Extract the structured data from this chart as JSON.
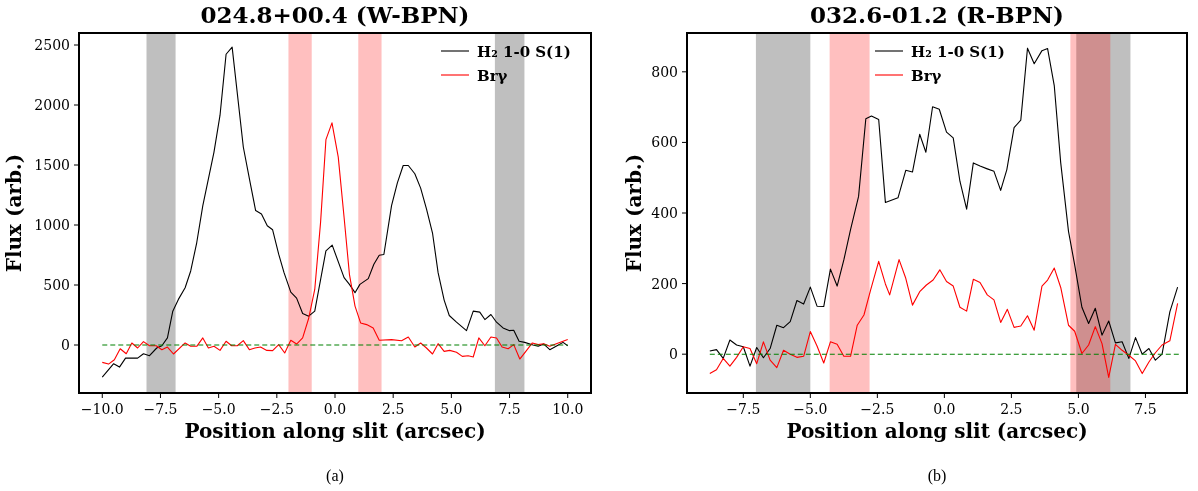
{
  "chart_data": [
    {
      "type": "line",
      "title": "024.8+00.4 (W-BPN)",
      "xlabel": "Position along slit (arcsec)",
      "ylabel": "Flux (arb.)",
      "annotations": [
        "(a)"
      ],
      "legend": "top right",
      "xlim": [
        -11,
        11
      ],
      "ylim": [
        -400,
        2600
      ],
      "xticks": [
        {
          "value": -10,
          "label": "−10.0"
        },
        {
          "value": -7.5,
          "label": "−7.5"
        },
        {
          "value": -5,
          "label": "−5.0"
        },
        {
          "value": -2.5,
          "label": "−2.5"
        },
        {
          "value": 0,
          "label": "0.0"
        },
        {
          "value": 2.5,
          "label": "2.5"
        },
        {
          "value": 5,
          "label": "5.0"
        },
        {
          "value": 7.5,
          "label": "7.5"
        },
        {
          "value": 10,
          "label": "10.0"
        }
      ],
      "yticks": [
        0,
        500,
        1000,
        1500,
        2000,
        2500
      ],
      "bands": [
        {
          "axis": "x",
          "from": -8.1,
          "to": -6.85,
          "color": "#000000"
        },
        {
          "axis": "x",
          "from": -2.0,
          "to": -1.0,
          "color": "#ff0000"
        },
        {
          "axis": "x",
          "from": 1.0,
          "to": 2.0,
          "color": "#ff0000"
        },
        {
          "axis": "x",
          "from": 6.87,
          "to": 8.14,
          "color": "#000000"
        }
      ],
      "series": [
        {
          "name": "H₂ 1-0 S(1)",
          "color": "#000000",
          "x": [
            -10,
            -9.51,
            -9.26,
            -9.0,
            -8.48,
            -8.23,
            -7.97,
            -7.66,
            -7.44,
            -7.2,
            -6.97,
            -6.73,
            -6.44,
            -6.2,
            -5.94,
            -5.68,
            -5.2,
            -4.94,
            -4.68,
            -4.42,
            -3.94,
            -3.65,
            -3.41,
            -3.16,
            -2.91,
            -2.68,
            -2.42,
            -2.19,
            -1.9,
            -1.65,
            -1.39,
            -1.13,
            -0.87,
            -0.39,
            -0.12,
            0.39,
            0.62,
            0.86,
            1.07,
            1.43,
            1.67,
            1.9,
            2.1,
            2.43,
            2.68,
            2.93,
            3.15,
            3.43,
            3.68,
            3.93,
            4.19,
            4.43,
            4.69,
            4.91,
            5.22,
            5.65,
            5.94,
            6.22,
            6.44,
            6.7,
            6.94,
            7.22,
            7.48,
            7.68,
            7.91,
            8.15,
            8.51,
            8.73,
            8.97,
            9.23,
            9.54,
            9.8,
            10
          ],
          "values": [
            -268,
            -156,
            -184,
            -109,
            -109,
            -73,
            -89,
            -25,
            -6,
            59,
            282,
            380,
            477,
            617,
            854,
            1161,
            1608,
            1915,
            2423,
            2482,
            1650,
            1357,
            1120,
            1092,
            994,
            960,
            757,
            603,
            441,
            391,
            262,
            240,
            282,
            785,
            832,
            561,
            505,
            436,
            505,
            553,
            673,
            748,
            754,
            1161,
            1351,
            1496,
            1496,
            1427,
            1307,
            1134,
            933,
            603,
            374,
            246,
            190,
            120,
            282,
            274,
            212,
            254,
            190,
            142,
            120,
            123,
            31,
            22,
            0,
            -11,
            8,
            -39,
            -6,
            22,
            -6
          ]
        },
        {
          "name": "Brγ",
          "color": "#ff0000",
          "x": [
            -10,
            -9.73,
            -9.48,
            -9.23,
            -8.97,
            -8.73,
            -8.48,
            -8.23,
            -7.97,
            -7.68,
            -7.44,
            -7.2,
            -6.94,
            -6.44,
            -6.2,
            -5.94,
            -5.68,
            -5.44,
            -5.2,
            -4.94,
            -4.68,
            -4.44,
            -4.2,
            -3.94,
            -3.68,
            -3.44,
            -3.2,
            -2.93,
            -2.68,
            -2.42,
            -2.16,
            -1.9,
            -1.65,
            -1.39,
            -1.13,
            -0.87,
            -0.62,
            -0.39,
            -0.13,
            0.14,
            0.39,
            0.62,
            0.86,
            1.1,
            1.36,
            1.64,
            1.9,
            2.43,
            2.86,
            3.15,
            3.43,
            3.68,
            3.93,
            4.19,
            4.43,
            4.69,
            4.93,
            5.22,
            5.47,
            5.72,
            5.94,
            6.18,
            6.44,
            6.7,
            6.94,
            7.18,
            7.44,
            7.68,
            7.94,
            8.2,
            8.48,
            8.73,
            8.97,
            9.23,
            9.51,
            10
          ],
          "values": [
            -145,
            -159,
            -123,
            -31,
            -73,
            17,
            -25,
            28,
            -6,
            -6,
            -39,
            -17,
            -75,
            17,
            -11,
            -11,
            59,
            -25,
            -11,
            -45,
            31,
            -6,
            -6,
            36,
            -39,
            -25,
            -17,
            -45,
            -47,
            3,
            -67,
            39,
            8,
            59,
            223,
            463,
            1022,
            1711,
            1851,
            1566,
            1064,
            589,
            324,
            184,
            170,
            142,
            39,
            45,
            36,
            67,
            -17,
            17,
            -25,
            -75,
            11,
            -53,
            -45,
            -61,
            -95,
            -89,
            -100,
            59,
            -6,
            67,
            59,
            -17,
            -31,
            3,
            -117,
            -53,
            17,
            3,
            11,
            -11,
            11,
            45
          ]
        },
        {
          "color": "#008000",
          "line_style": "dashed",
          "x": [
            -10,
            10
          ],
          "values": [
            0,
            0
          ]
        }
      ]
    },
    {
      "type": "line",
      "title": "032.6-01.2 (R-BPN)",
      "xlabel": "Position along slit (arcsec)",
      "ylabel": "Flux (arb.)",
      "annotations": [
        "(b)"
      ],
      "legend": "top right",
      "xlim": [
        -9.6,
        9.05
      ],
      "ylim": [
        -110,
        910
      ],
      "xticks": [
        {
          "value": -7.5,
          "label": "−7.5"
        },
        {
          "value": -5,
          "label": "−5.0"
        },
        {
          "value": -2.5,
          "label": "−2.5"
        },
        {
          "value": 0,
          "label": "0.0"
        },
        {
          "value": 2.5,
          "label": "2.5"
        },
        {
          "value": 5,
          "label": "5.0"
        },
        {
          "value": 7.5,
          "label": "7.5"
        }
      ],
      "yticks": [
        0,
        200,
        400,
        600,
        800
      ],
      "bands": [
        {
          "axis": "x",
          "from": -7.03,
          "to": -5.0,
          "color": "#000000"
        },
        {
          "axis": "x",
          "from": 4.92,
          "to": 6.94,
          "color": "#000000"
        },
        {
          "axis": "x",
          "from": -4.28,
          "to": -2.79,
          "color": "#ff0000"
        },
        {
          "axis": "x",
          "from": 4.7,
          "to": 6.19,
          "color": "#ff0000"
        }
      ],
      "series": [
        {
          "name": "H₂ 1-0 S(1)",
          "color": "#000000",
          "x": [
            -8.75,
            -8.5,
            -8.25,
            -8.0,
            -7.75,
            -7.5,
            -7.25,
            -7.0,
            -6.75,
            -6.5,
            -6.25,
            -6.0,
            -5.75,
            -5.5,
            -5.25,
            -5.0,
            -4.75,
            -4.5,
            -4.25,
            -4.0,
            -3.75,
            -3.5,
            -3.2,
            -2.93,
            -2.72,
            -2.45,
            -2.2,
            -1.73,
            -1.44,
            -1.19,
            -0.92,
            -0.69,
            -0.44,
            -0.19,
            0.08,
            0.33,
            0.58,
            0.83,
            1.08,
            1.33,
            1.6,
            1.85,
            2.1,
            2.33,
            2.6,
            2.85,
            3.1,
            3.35,
            3.64,
            3.85,
            4.1,
            4.34,
            4.63,
            4.86,
            5.13,
            5.38,
            5.63,
            5.88,
            6.13,
            6.38,
            6.63,
            6.88,
            7.13,
            7.38,
            7.63,
            7.87,
            8.12,
            8.41,
            8.7
          ],
          "values": [
            9,
            13,
            -12,
            40,
            26,
            21,
            -34,
            19,
            -10,
            16,
            82,
            75,
            92,
            152,
            142,
            190,
            136,
            135,
            241,
            193,
            267,
            353,
            447,
            667,
            675,
            665,
            430,
            443,
            521,
            516,
            623,
            572,
            701,
            694,
            629,
            613,
            490,
            411,
            542,
            533,
            525,
            518,
            464,
            523,
            642,
            663,
            867,
            823,
            860,
            866,
            760,
            542,
            348,
            253,
            133,
            87,
            130,
            54,
            94,
            32,
            35,
            -12,
            47,
            0,
            16,
            -17,
            0,
            120,
            190
          ]
        },
        {
          "name": "Brγ",
          "color": "#ff0000",
          "x": [
            -8.75,
            -8.5,
            -8.25,
            -8.0,
            -7.75,
            -7.5,
            -7.25,
            -7.0,
            -6.75,
            -6.5,
            -6.25,
            -6.0,
            -5.75,
            -5.5,
            -5.25,
            -5.0,
            -4.75,
            -4.5,
            -4.25,
            -4.0,
            -3.75,
            -3.5,
            -3.25,
            -3.0,
            -2.75,
            -2.45,
            -2.2,
            -2.04,
            -1.69,
            -1.44,
            -1.19,
            -0.92,
            -0.67,
            -0.42,
            -0.17,
            0.08,
            0.33,
            0.58,
            0.83,
            1.08,
            1.33,
            1.6,
            1.85,
            2.1,
            2.35,
            2.6,
            2.85,
            3.1,
            3.35,
            3.64,
            3.85,
            4.1,
            4.34,
            4.63,
            4.86,
            5.13,
            5.38,
            5.63,
            5.88,
            6.13,
            6.38,
            6.63,
            6.88,
            7.13,
            7.38,
            7.63,
            7.87,
            8.12,
            8.41,
            8.7
          ],
          "values": [
            -55,
            -44,
            -12,
            -34,
            -9,
            21,
            16,
            -27,
            35,
            -17,
            -38,
            11,
            0,
            -9,
            -6,
            64,
            23,
            -25,
            35,
            28,
            -6,
            -6,
            82,
            111,
            182,
            263,
            199,
            168,
            268,
            215,
            139,
            177,
            196,
            210,
            239,
            206,
            193,
            133,
            122,
            212,
            203,
            168,
            154,
            90,
            127,
            76,
            80,
            109,
            68,
            193,
            210,
            244,
            189,
            82,
            65,
            2,
            26,
            78,
            30,
            -66,
            28,
            11,
            -3,
            -19,
            -55,
            -22,
            4,
            26,
            38,
            144
          ]
        },
        {
          "color": "#008000",
          "line_style": "dashed",
          "x": [
            -8.75,
            8.75
          ],
          "values": [
            0,
            0
          ]
        }
      ]
    }
  ]
}
